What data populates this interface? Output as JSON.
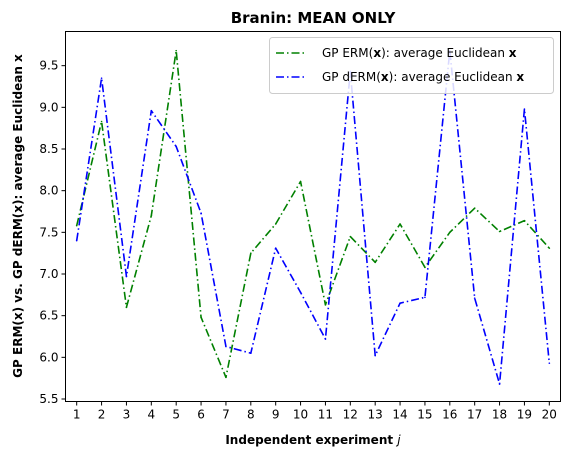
{
  "chart_data": {
    "type": "line",
    "title": "Branin: MEAN ONLY",
    "xlabel": "Independent experiment j",
    "ylabel": "GP ERM(x) vs. GP dERM(x): average Euclidean x",
    "x": [
      1,
      2,
      3,
      4,
      5,
      6,
      7,
      8,
      9,
      10,
      11,
      12,
      13,
      14,
      15,
      16,
      17,
      18,
      19,
      20
    ],
    "xlim": [
      0.55,
      20.45
    ],
    "ylim": [
      5.47,
      9.91
    ],
    "yticks": [
      5.5,
      6.0,
      6.5,
      7.0,
      7.5,
      8.0,
      8.5,
      9.0,
      9.5
    ],
    "grid": false,
    "legend_position": "upper right",
    "series": [
      {
        "name": "GP ERM(x): average Euclidean x",
        "color": "#008000",
        "linestyle": "dashdot",
        "values": [
          7.58,
          8.83,
          6.6,
          7.7,
          9.68,
          6.48,
          5.76,
          7.25,
          7.6,
          8.11,
          6.63,
          7.45,
          7.14,
          7.6,
          7.08,
          7.5,
          7.79,
          7.51,
          7.64,
          7.31
        ]
      },
      {
        "name": "GP dERM(x): average Euclidean x",
        "color": "#0000ff",
        "linestyle": "dashdot",
        "values": [
          7.4,
          9.35,
          6.97,
          8.96,
          8.53,
          7.73,
          6.13,
          6.05,
          7.31,
          6.78,
          6.22,
          9.43,
          6.02,
          6.65,
          6.72,
          9.68,
          6.71,
          5.68,
          8.98,
          5.93
        ]
      }
    ]
  }
}
